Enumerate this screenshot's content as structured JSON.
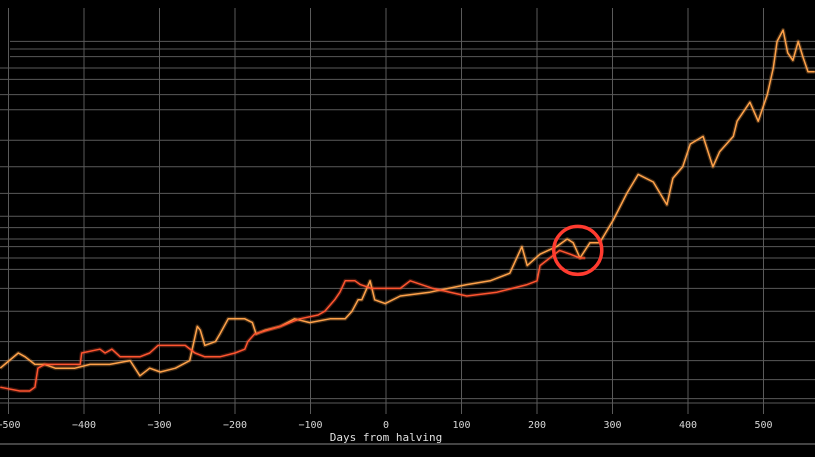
{
  "chart_data": {
    "type": "line",
    "title": "",
    "xlabel": "Days from halving",
    "ylabel": "",
    "xlim": [
      -511,
      568
    ],
    "ylim": [
      0,
      100
    ],
    "y_scale": "log (unlabeled)",
    "grid": true,
    "legend": "none",
    "background": "#000000",
    "grid_color": "#5a5a5a",
    "x_ticks": [
      -500,
      -400,
      -300,
      -200,
      -100,
      0,
      100,
      200,
      300,
      400,
      500
    ],
    "x_tick_labels": [
      "−500",
      "−400",
      "−300",
      "−200",
      "−100",
      "0",
      "100",
      "200",
      "300",
      "400",
      "500"
    ],
    "y_gridlines": [
      97,
      95,
      93,
      90,
      87,
      83,
      79,
      71,
      64,
      57,
      51,
      48,
      45,
      43,
      40,
      37,
      32,
      26,
      18,
      13,
      8,
      3
    ],
    "series": [
      {
        "color": "#ffa24a",
        "x": [
          -511,
          -487,
          -478,
          -465,
          -452,
          -438,
          -425,
          -412,
          -392,
          -366,
          -339,
          -326,
          -313,
          -299,
          -279,
          -260,
          -250,
          -246,
          -240,
          -226,
          -220,
          -209,
          -200,
          -187,
          -177,
          -172,
          -160,
          -140,
          -121,
          -101,
          -74,
          -54,
          -45,
          -37,
          -32,
          -21,
          -15,
          -1,
          19,
          58,
          107,
          138,
          164,
          180,
          187,
          204,
          226,
          240,
          248,
          257,
          270,
          283,
          301,
          319,
          334,
          354,
          372,
          380,
          393,
          403,
          420,
          433,
          442,
          460,
          465,
          482,
          493,
          505,
          513,
          518,
          526,
          532,
          539,
          546,
          552,
          559,
          568
        ],
        "y": [
          11,
          15,
          14,
          12,
          12,
          11,
          11,
          11,
          12,
          12,
          13,
          9,
          11,
          10,
          11,
          13,
          22,
          21,
          17,
          18,
          20,
          24,
          24,
          24,
          23,
          20,
          21,
          22,
          24,
          23,
          24,
          24,
          26,
          29,
          29,
          34,
          29,
          28,
          30,
          31,
          33,
          34,
          36,
          43,
          38,
          41,
          43,
          45,
          44,
          40,
          44,
          44,
          50,
          57,
          62,
          60,
          54,
          61,
          64,
          70,
          72,
          64,
          68,
          72,
          76,
          81,
          76,
          83,
          90,
          97,
          100,
          94,
          92,
          97,
          93,
          89,
          89
        ]
      },
      {
        "color": "#ff5530",
        "x": [
          -511,
          -485,
          -472,
          -465,
          -461,
          -452,
          -419,
          -405,
          -403,
          -379,
          -372,
          -363,
          -352,
          -326,
          -313,
          -302,
          -266,
          -253,
          -240,
          -220,
          -200,
          -187,
          -183,
          -174,
          -140,
          -114,
          -90,
          -81,
          -68,
          -61,
          -54,
          -41,
          -34,
          -19,
          5,
          19,
          32,
          62,
          107,
          147,
          187,
          200,
          204,
          217,
          230,
          244,
          257,
          264
        ],
        "y": [
          6,
          5,
          5,
          6,
          11,
          12,
          12,
          12,
          15,
          16,
          15,
          16,
          14,
          14,
          15,
          17,
          17,
          15,
          14,
          14,
          15,
          16,
          18,
          20,
          22,
          24,
          25,
          26,
          29,
          31,
          34,
          34,
          33,
          32,
          32,
          32,
          34,
          32,
          30,
          31,
          33,
          34,
          38,
          40,
          42,
          41,
          40,
          40
        ]
      }
    ],
    "annotation": {
      "type": "circle",
      "x": 254,
      "y": 42,
      "color": "#ff3b2f"
    }
  }
}
